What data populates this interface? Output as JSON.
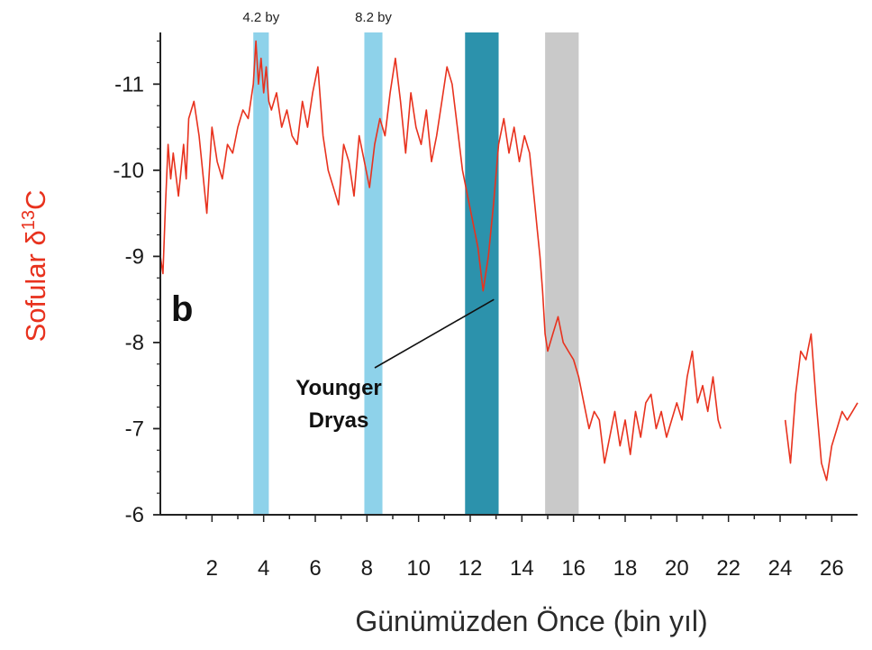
{
  "chart_data": {
    "type": "line",
    "title": "",
    "panel_label": "b",
    "ylabel_text": "Sofular δ",
    "ylabel_sup": "13",
    "ylabel_suffix": "C",
    "xlabel": "Günümüzden Önce (bin yıl)",
    "xlim": [
      0,
      27
    ],
    "ylim": [
      -6,
      -11.6
    ],
    "y_axis_inverted": true,
    "x_ticks": [
      2,
      4,
      6,
      8,
      10,
      12,
      14,
      16,
      18,
      20,
      22,
      24,
      26
    ],
    "x_tick_labels": [
      "2",
      "4",
      "6",
      "8",
      "10",
      "12",
      "14",
      "16",
      "18",
      "20",
      "22",
      "24",
      "26"
    ],
    "y_ticks": [
      -6,
      -7,
      -8,
      -9,
      -10,
      -11
    ],
    "y_tick_labels": [
      "-6",
      "-7",
      "-8",
      "-9",
      "-10",
      "-11"
    ],
    "grid": false,
    "shaded_bands": [
      {
        "label": "4.2 by",
        "start": 3.6,
        "end": 4.2,
        "color": "#8ed2ea"
      },
      {
        "label": "8.2 by",
        "start": 7.9,
        "end": 8.6,
        "color": "#8ed2ea"
      },
      {
        "label": "",
        "start": 11.8,
        "end": 13.1,
        "color": "#2c92ac"
      },
      {
        "label": "",
        "start": 14.9,
        "end": 16.2,
        "color": "#c9c9c9"
      }
    ],
    "annotation": {
      "lines": [
        "Younger",
        "Dryas"
      ],
      "target_x": 12.5,
      "target_y": -8.5
    },
    "series": [
      {
        "color": "#e8321e",
        "segments": [
          {
            "x": [
              0.0,
              0.1,
              0.2,
              0.3,
              0.4,
              0.5,
              0.7,
              0.9,
              1.0,
              1.1,
              1.3,
              1.5,
              1.6,
              1.8,
              2.0,
              2.2,
              2.4,
              2.6,
              2.8,
              3.0,
              3.2,
              3.4,
              3.6,
              3.7,
              3.8,
              3.9,
              4.0,
              4.1,
              4.2,
              4.3,
              4.5,
              4.7,
              4.9,
              5.1,
              5.3,
              5.5,
              5.7,
              5.9,
              6.1,
              6.3,
              6.5,
              6.7,
              6.9,
              7.1,
              7.3,
              7.5,
              7.7,
              7.9,
              8.1,
              8.3,
              8.5,
              8.7,
              8.9,
              9.1,
              9.3,
              9.5,
              9.7,
              9.9,
              10.1,
              10.3,
              10.5,
              10.7,
              10.9,
              11.1,
              11.3,
              11.5,
              11.7,
              11.9,
              12.1,
              12.3,
              12.5,
              12.7,
              12.9,
              13.1,
              13.3,
              13.5,
              13.7,
              13.9,
              14.1,
              14.3,
              14.5,
              14.6,
              14.7,
              14.8,
              14.9,
              15.0,
              15.2,
              15.4,
              15.6,
              15.8,
              16.0,
              16.2,
              16.4,
              16.6,
              16.8,
              17.0,
              17.2,
              17.4,
              17.6,
              17.8,
              18.0,
              18.2,
              18.4,
              18.6,
              18.8,
              19.0,
              19.2,
              19.4,
              19.6,
              19.8,
              20.0,
              20.2,
              20.4,
              20.6,
              20.8,
              21.0,
              21.2,
              21.4,
              21.6,
              21.7
            ],
            "y": [
              -9.0,
              -8.8,
              -9.6,
              -10.3,
              -9.9,
              -10.2,
              -9.7,
              -10.3,
              -9.9,
              -10.6,
              -10.8,
              -10.4,
              -10.1,
              -9.5,
              -10.5,
              -10.1,
              -9.9,
              -10.3,
              -10.2,
              -10.5,
              -10.7,
              -10.6,
              -11.0,
              -11.5,
              -11.0,
              -11.3,
              -10.9,
              -11.2,
              -10.8,
              -10.7,
              -10.9,
              -10.5,
              -10.7,
              -10.4,
              -10.3,
              -10.8,
              -10.5,
              -10.9,
              -11.2,
              -10.4,
              -10.0,
              -9.8,
              -9.6,
              -10.3,
              -10.1,
              -9.7,
              -10.4,
              -10.1,
              -9.8,
              -10.3,
              -10.6,
              -10.4,
              -10.9,
              -11.3,
              -10.8,
              -10.2,
              -10.9,
              -10.5,
              -10.3,
              -10.7,
              -10.1,
              -10.4,
              -10.8,
              -11.2,
              -11.0,
              -10.5,
              -10.0,
              -9.7,
              -9.4,
              -9.1,
              -8.6,
              -9.0,
              -9.6,
              -10.3,
              -10.6,
              -10.2,
              -10.5,
              -10.1,
              -10.4,
              -10.2,
              -9.6,
              -9.3,
              -9.0,
              -8.6,
              -8.1,
              -7.9,
              -8.1,
              -8.3,
              -8.0,
              -7.9,
              -7.8,
              -7.6,
              -7.3,
              -7.0,
              -7.2,
              -7.1,
              -6.6,
              -6.9,
              -7.2,
              -6.8,
              -7.1,
              -6.7,
              -7.2,
              -6.9,
              -7.3,
              -7.4,
              -7.0,
              -7.2,
              -6.9,
              -7.1,
              -7.3,
              -7.1,
              -7.6,
              -7.9,
              -7.3,
              -7.5,
              -7.2,
              -7.6,
              -7.1,
              -7.0
            ]
          },
          {
            "x": [
              24.2,
              24.4,
              24.6,
              24.8,
              25.0,
              25.2,
              25.4,
              25.6,
              25.8,
              26.0,
              26.2,
              26.4,
              26.6,
              26.8,
              27.0
            ],
            "y": [
              -7.1,
              -6.6,
              -7.4,
              -7.9,
              -7.8,
              -8.1,
              -7.3,
              -6.6,
              -6.4,
              -6.8,
              -7.0,
              -7.2,
              -7.1,
              -7.2,
              -7.3
            ]
          }
        ]
      }
    ]
  }
}
